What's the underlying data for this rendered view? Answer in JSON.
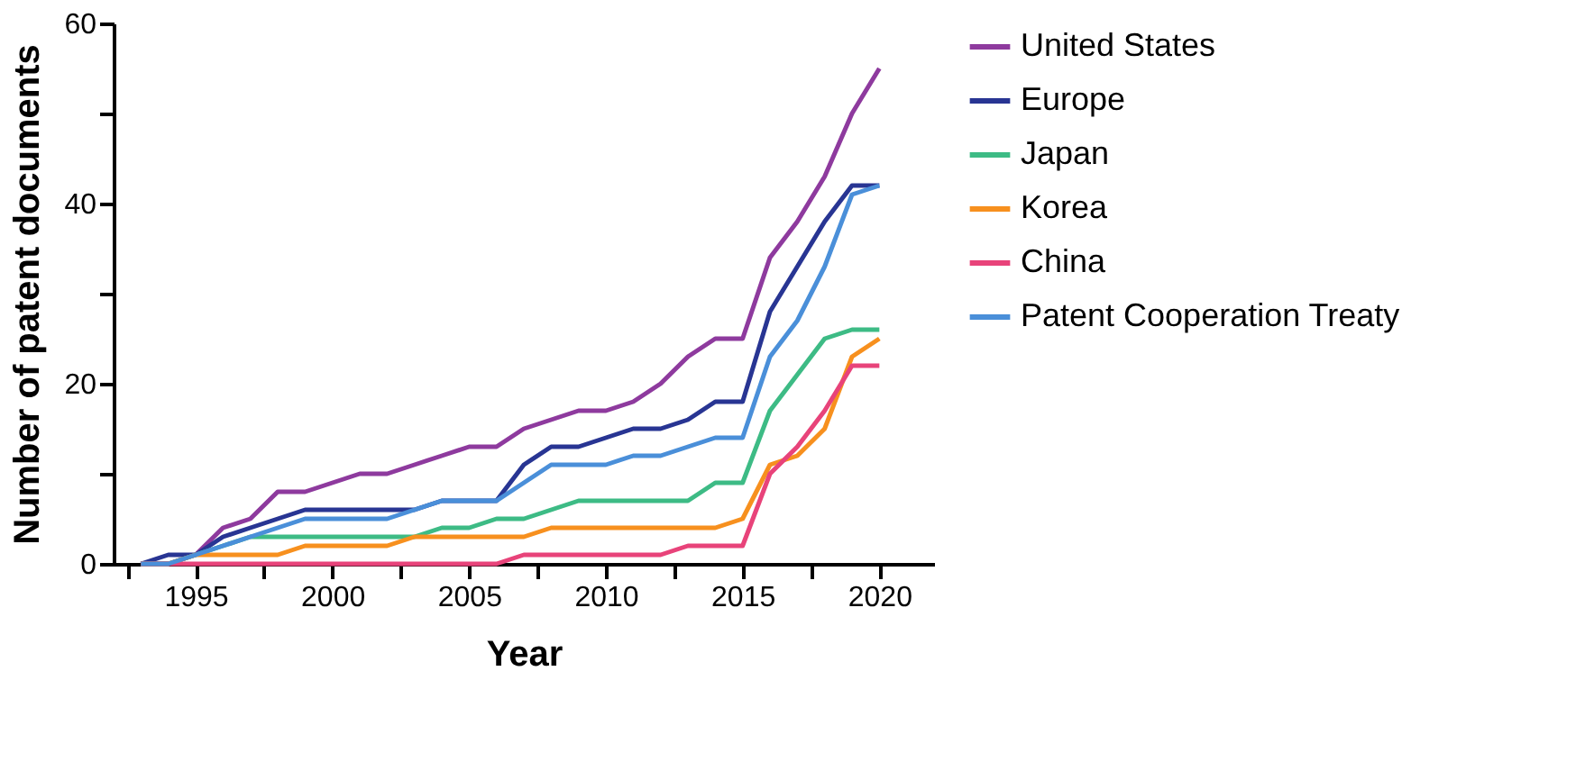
{
  "chart_data": {
    "type": "line",
    "xlabel": "Year",
    "ylabel": "Number of patent documents",
    "x": [
      1993,
      1994,
      1995,
      1996,
      1997,
      1998,
      1999,
      2000,
      2001,
      2002,
      2003,
      2004,
      2005,
      2006,
      2007,
      2008,
      2009,
      2010,
      2011,
      2012,
      2013,
      2014,
      2015,
      2016,
      2017,
      2018,
      2019,
      2020
    ],
    "series": [
      {
        "name": "United States",
        "color": "#8e3a9e",
        "values": [
          0,
          0,
          1,
          4,
          5,
          8,
          8,
          9,
          10,
          10,
          11,
          12,
          13,
          13,
          15,
          16,
          17,
          17,
          18,
          20,
          23,
          25,
          25,
          34,
          38,
          43,
          50,
          55
        ]
      },
      {
        "name": "Europe",
        "color": "#283593",
        "values": [
          0,
          1,
          1,
          3,
          4,
          5,
          6,
          6,
          6,
          6,
          6,
          7,
          7,
          7,
          11,
          13,
          13,
          14,
          15,
          15,
          16,
          18,
          18,
          28,
          33,
          38,
          42,
          42
        ]
      },
      {
        "name": "Japan",
        "color": "#3dbb85",
        "values": [
          0,
          0,
          1,
          2,
          3,
          3,
          3,
          3,
          3,
          3,
          3,
          4,
          4,
          5,
          5,
          6,
          7,
          7,
          7,
          7,
          7,
          9,
          9,
          17,
          21,
          25,
          26,
          26
        ]
      },
      {
        "name": "Korea",
        "color": "#f7901e",
        "values": [
          0,
          0,
          1,
          1,
          1,
          1,
          2,
          2,
          2,
          2,
          3,
          3,
          3,
          3,
          3,
          4,
          4,
          4,
          4,
          4,
          4,
          4,
          5,
          11,
          12,
          15,
          23,
          25
        ]
      },
      {
        "name": "China",
        "color": "#e8437a",
        "values": [
          0,
          0,
          0,
          0,
          0,
          0,
          0,
          0,
          0,
          0,
          0,
          0,
          0,
          0,
          1,
          1,
          1,
          1,
          1,
          1,
          2,
          2,
          2,
          10,
          13,
          17,
          22,
          22
        ]
      },
      {
        "name": "Patent Cooperation Treaty",
        "color": "#4a8fd9",
        "values": [
          0,
          0,
          1,
          2,
          3,
          4,
          5,
          5,
          5,
          5,
          6,
          7,
          7,
          7,
          9,
          11,
          11,
          11,
          12,
          12,
          13,
          14,
          14,
          23,
          27,
          33,
          41,
          42
        ]
      }
    ],
    "xlim": [
      1992,
      2022
    ],
    "xticks": [
      {
        "value": 1992.5,
        "label": null
      },
      1995,
      {
        "value": 1997.5,
        "label": null
      },
      2000,
      {
        "value": 2002.5,
        "label": null
      },
      2005,
      {
        "value": 2007.5,
        "label": null
      },
      2010,
      {
        "value": 2012.5,
        "label": null
      },
      2015,
      {
        "value": 2017.5,
        "label": null
      },
      2020
    ],
    "ylim": [
      0,
      60
    ],
    "yticks": [
      0,
      {
        "value": 10,
        "label": null
      },
      20,
      {
        "value": 30,
        "label": null
      },
      40,
      {
        "value": 50,
        "label": null
      },
      60
    ],
    "grid": false,
    "legend": "right",
    "marker": "none",
    "line_style": "solid"
  }
}
